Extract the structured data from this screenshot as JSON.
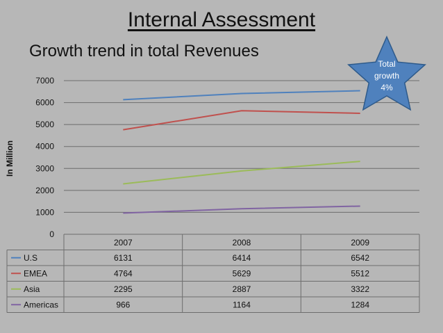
{
  "slide": {
    "title": "Internal Assessment",
    "subtitle": "Growth trend in total Revenues"
  },
  "callout": {
    "lines": [
      "Total",
      "growth",
      "4%"
    ],
    "color": "#4f81bd"
  },
  "chart_data": {
    "type": "line",
    "title": "",
    "xlabel": "",
    "ylabel": "In Million",
    "categories": [
      "2007",
      "2008",
      "2009"
    ],
    "ylim": [
      0,
      7000
    ],
    "yticks": [
      0,
      1000,
      2000,
      3000,
      4000,
      5000,
      6000,
      7000
    ],
    "grid": true,
    "legend": "data-table",
    "series": [
      {
        "name": "U.S",
        "values": [
          6131,
          6414,
          6542
        ],
        "color": "#4f81bd"
      },
      {
        "name": "EMEA",
        "values": [
          4764,
          5629,
          5512
        ],
        "color": "#c0504d"
      },
      {
        "name": "Asia",
        "values": [
          2295,
          2887,
          3322
        ],
        "color": "#9bbb59"
      },
      {
        "name": "Americas",
        "values": [
          966,
          1164,
          1284
        ],
        "color": "#8064a2"
      }
    ]
  }
}
